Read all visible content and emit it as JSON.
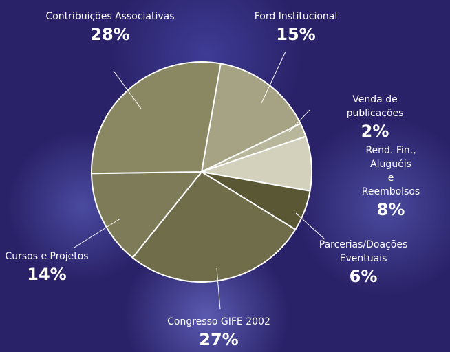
{
  "chart_data": {
    "type": "pie",
    "categories": [
      "Ford Institucional",
      "Venda de publicações",
      "Rend. Fin., Aluguéis\ne Reembolsos",
      "Parcerias/Doações\nEventuais",
      "Congresso GIFE 2002",
      "Cursos e Projetos",
      "Contribuições Associativas"
    ],
    "values": [
      15,
      2,
      8,
      6,
      27,
      14,
      28
    ],
    "value_labels": [
      "15%",
      "2%",
      "8%",
      "6%",
      "27%",
      "14%",
      "28%"
    ],
    "colors": [
      "#a5a384",
      "#b9b79b",
      "#d3d1bc",
      "#5a5735",
      "#706d4b",
      "#7e7b58",
      "#8a8763"
    ]
  }
}
